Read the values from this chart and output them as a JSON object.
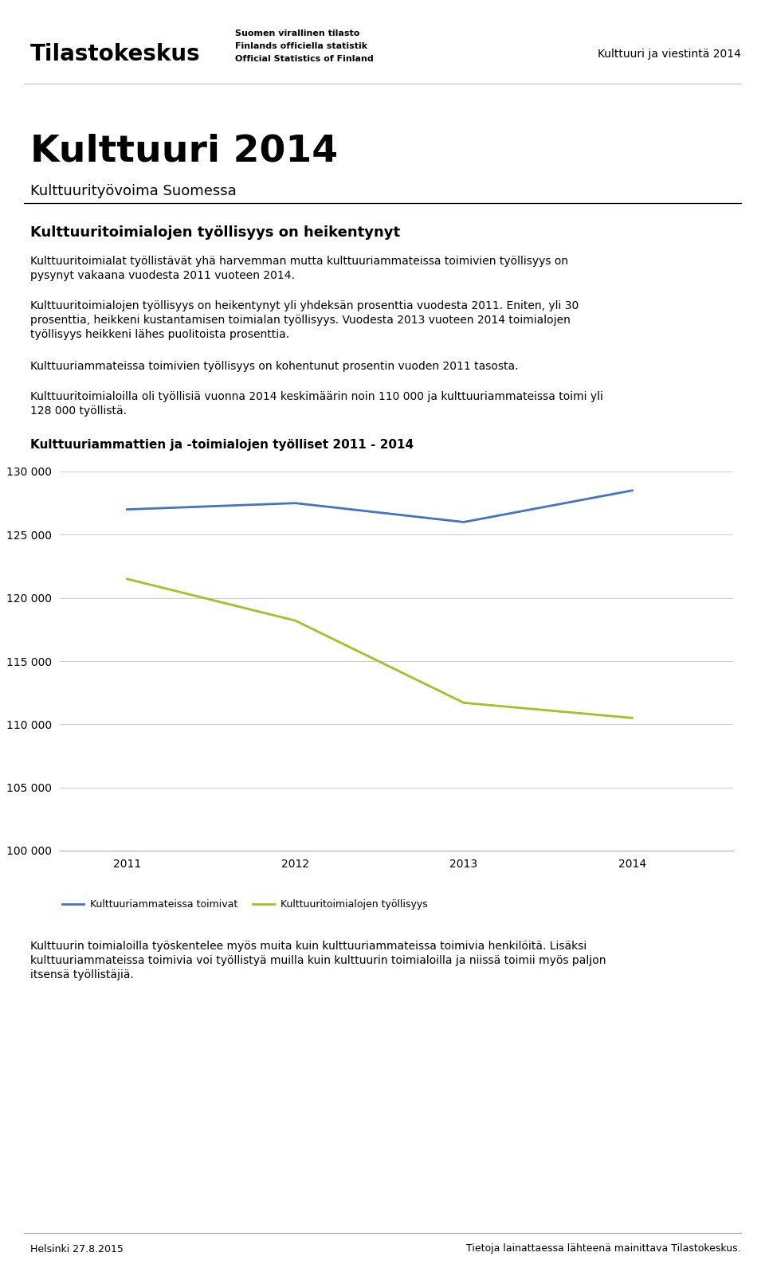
{
  "header_right_text": "Kulttuuri ja viestintä 2014",
  "logo_text": "Tilastokeskus",
  "official_text_line1": "Suomen virallinen tilasto",
  "official_text_line2": "Finlands officiella statistik",
  "official_text_line3": "Official Statistics of Finland",
  "page_title": "Kulttuuri 2014",
  "page_subtitle": "Kulttuurityövoima Suomessa",
  "section_title": "Kulttuuritoimialojen työllisyys on heikentynyt",
  "para1_line1": "Kulttuuritoimialat työllistävät yhä harvemman mutta kulttuuriammateissa toimivien työllisyys on",
  "para1_line2": "pysynyt vakaana vuodesta 2011 vuoteen 2014.",
  "para2_line1": "Kulttuuritoimialojen työllisyys on heikentynyt yli yhdeksän prosenttia vuodesta 2011. Eniten, yli 30",
  "para2_line2": "prosenttia, heikkeni kustantamisen toimialan työllisyys. Vuodesta 2013 vuoteen 2014 toimialojen",
  "para2_line3": "työllisyys heikkeni lähes puolitoista prosenttia.",
  "para3": "Kulttuuriammateissa toimivien työllisyys on kohentunut prosentin vuoden 2011 tasosta.",
  "para4_line1": "Kulttuuritoimialoilla oli työllisiä vuonna 2014 keskimäärin noin 110 000 ja kulttuuriammateissa toimi yli",
  "para4_line2": "128 000 työllistä.",
  "chart_title": "Kulttuuriammattien ja -toimialojen työlliset 2011 - 2014",
  "years": [
    2011,
    2012,
    2013,
    2014
  ],
  "line1_label": "Kulttuuriammateissa toimivat",
  "line1_values": [
    127000,
    127500,
    126000,
    128500
  ],
  "line1_color": "#4472C4",
  "line2_label": "Kulttuuritoimialojen työllisyys",
  "line2_values": [
    121500,
    118200,
    111700,
    110500
  ],
  "line2_color": "#9DC425",
  "ylim_min": 100000,
  "ylim_max": 130000,
  "yticks": [
    100000,
    105000,
    110000,
    115000,
    120000,
    125000,
    130000
  ],
  "after_chart_line1": "Kulttuurin toimialoilla työskentelee myös muita kuin kulttuuriammateissa toimivia henkilöitä. Lisäksi",
  "after_chart_line2": "kulttuuriammateissa toimivia voi työllistyä muilla kuin kulttuurin toimialoilla ja niissä toimii myös paljon",
  "after_chart_line3": "itsensä työllistäjiä.",
  "footer_left": "Helsinki 27.8.2015",
  "footer_right": "Tietoja lainattaessa lähteenä mainittava Tilastokeskus.",
  "background_color": "#ffffff",
  "text_color": "#000000",
  "grid_color": "#cccccc"
}
